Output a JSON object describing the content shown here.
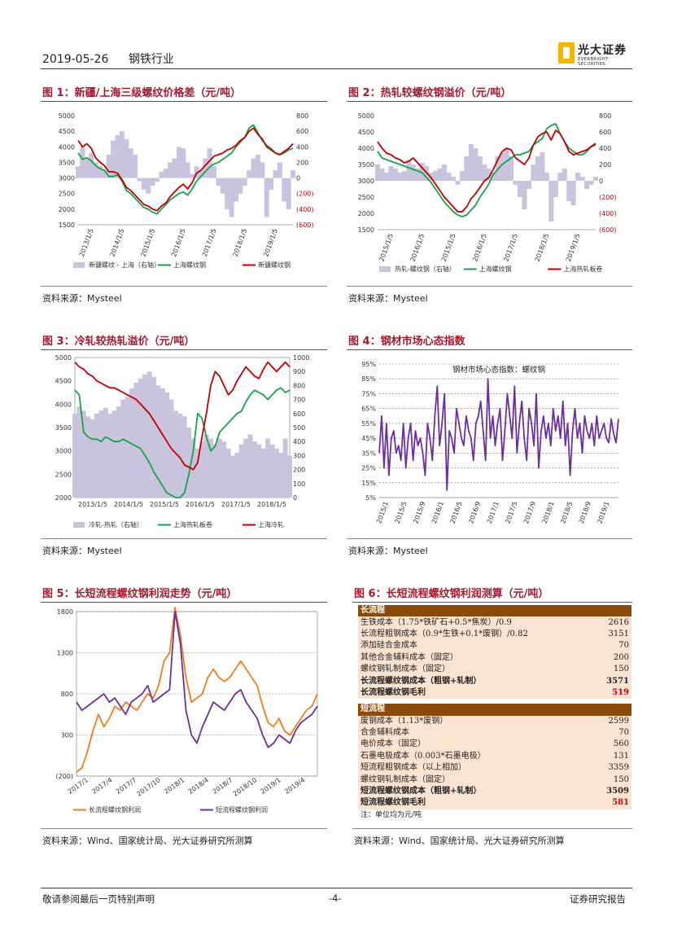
{
  "header": {
    "date": "2019-05-26",
    "industry": "钢铁行业",
    "logo_cn": "光大证券",
    "logo_en": "EVERBRIGHT SECURITIES"
  },
  "figures": {
    "fig1": {
      "title": "图 1：新疆/上海三级螺纹价格差（元/吨）",
      "source": "资料来源：Mysteel"
    },
    "fig2": {
      "title": "图 2：热轧较螺纹钢溢价（元/吨）",
      "source": "资料来源：Mysteel"
    },
    "fig3": {
      "title": "图 3：冷轧较热轧溢价（元/吨）",
      "source": "资料来源：Mysteel"
    },
    "fig4": {
      "title": "图 4：钢材市场心态指数",
      "source": "资料来源：Mysteel"
    },
    "fig5": {
      "title": "图 5：长短流程螺纹钢利润走势（元/吨）",
      "source": "资料来源：Wind、国家统计局、光大证券研究所测算"
    },
    "fig6": {
      "title": "图 6：长短流程螺纹钢利润测算（元/吨）",
      "source": "资料来源：Wind、国家统计局、光大证券研究所测算"
    }
  },
  "chart_data": [
    {
      "id": "fig1",
      "type": "line",
      "y_left": {
        "ticks": [
          "5000",
          "4500",
          "4000",
          "3500",
          "3000",
          "2500",
          "2000",
          "1500"
        ],
        "range": [
          1500,
          5000
        ]
      },
      "y_right": {
        "ticks": [
          "800",
          "600",
          "400",
          "200",
          "0",
          "(200)",
          "(400)",
          "(600)"
        ],
        "range": [
          -600,
          800
        ],
        "negative_color": "#c00000"
      },
      "x_ticks": [
        "2013/1/5",
        "2014/1/5",
        "2015/1/5",
        "2016/1/5",
        "2017/1/5",
        "2018/1/5",
        "2019/1/5"
      ],
      "legend": [
        "新疆螺纹 - 上海（右轴）",
        "上海螺纹钢",
        "新疆螺纹钢"
      ],
      "series": [
        {
          "name": "新疆螺纹 - 上海（右轴）",
          "axis": "right",
          "kind": "area",
          "color": "#c9c3de",
          "values": [
            150,
            400,
            250,
            320,
            200,
            150,
            100,
            300,
            480,
            550,
            600,
            500,
            380,
            300,
            -40,
            -150,
            -200,
            -100,
            -50,
            80,
            120,
            200,
            250,
            400,
            380,
            200,
            50,
            150,
            100,
            250,
            380,
            150,
            -100,
            -200,
            -400,
            -500,
            -300,
            -200,
            -100,
            100,
            250,
            300,
            200,
            -500,
            -150,
            100,
            200,
            -300,
            -400,
            100
          ]
        },
        {
          "name": "上海螺纹钢",
          "axis": "left",
          "color": "#16a34a",
          "values": [
            3800,
            3600,
            3650,
            3550,
            3400,
            3300,
            3250,
            3050,
            3050,
            3100,
            2900,
            2600,
            2500,
            2350,
            2200,
            2050,
            2000,
            1900,
            1850,
            2000,
            2150,
            2300,
            2400,
            2500,
            2550,
            2450,
            2650,
            2900,
            3050,
            3200,
            3350,
            3450,
            3500,
            3600,
            3700,
            3800,
            4000,
            4150,
            4300,
            4600,
            4700,
            4450,
            4200,
            4050,
            3950,
            3800,
            3750,
            3800,
            3900,
            3950
          ]
        },
        {
          "name": "新疆螺纹钢",
          "axis": "left",
          "color": "#c00000",
          "values": [
            4200,
            4000,
            4100,
            3950,
            3650,
            3500,
            3400,
            3200,
            3200,
            3150,
            2950,
            2700,
            2600,
            2450,
            2300,
            2150,
            2100,
            2000,
            1950,
            2100,
            2200,
            2400,
            2550,
            2700,
            2800,
            2650,
            2850,
            3150,
            3250,
            3400,
            3550,
            3700,
            3750,
            3800,
            3900,
            3950,
            4050,
            4200,
            4300,
            4500,
            4600,
            4400,
            4250,
            4000,
            3900,
            3800,
            3750,
            3850,
            3950,
            4100
          ]
        }
      ]
    },
    {
      "id": "fig2",
      "type": "line",
      "y_left": {
        "ticks": [
          "5000",
          "4500",
          "4000",
          "3500",
          "3000",
          "2500",
          "2000",
          "1500"
        ],
        "range": [
          1500,
          5000
        ]
      },
      "y_right": {
        "ticks": [
          "800",
          "600",
          "400",
          "200",
          "0",
          "(200)",
          "(400)",
          "(600)"
        ],
        "range": [
          -600,
          800
        ],
        "negative_color": "#c00000"
      },
      "x_ticks": [
        "2015/1/5",
        "2016/1/5",
        "2015/1/5",
        "2016/1/5",
        "2017/1/5",
        "2018/1/5",
        "2019/1/5"
      ],
      "legend": [
        "热轧-螺纹钢（右轴）",
        "上海螺纹钢",
        "上海热轧板卷"
      ],
      "series": [
        {
          "name": "热轧-螺纹钢（右轴）",
          "axis": "right",
          "kind": "area",
          "color": "#c9c3de",
          "values": [
            200,
            150,
            100,
            180,
            150,
            100,
            120,
            250,
            200,
            150,
            220,
            180,
            100,
            120,
            150,
            200,
            100,
            50,
            -50,
            120,
            300,
            450,
            400,
            300,
            200,
            150,
            100,
            300,
            350,
            400,
            300,
            -50,
            -200,
            -350,
            -100,
            200,
            300,
            350,
            100,
            -500,
            -200,
            100,
            150,
            -250,
            -300,
            100,
            50,
            -100,
            -50,
            50
          ]
        },
        {
          "name": "上海螺纹钢",
          "axis": "left",
          "color": "#16a34a",
          "values": [
            3900,
            3700,
            3650,
            3600,
            3550,
            3500,
            3450,
            3400,
            3350,
            3300,
            3250,
            3100,
            2950,
            2750,
            2550,
            2350,
            2200,
            2050,
            1950,
            1900,
            1950,
            2100,
            2250,
            2500,
            2700,
            2900,
            3200,
            3350,
            3500,
            3600,
            3700,
            3800,
            3800,
            3850,
            3900,
            4100,
            4200,
            4300,
            4600,
            4700,
            4750,
            4450,
            4200,
            4000,
            3900,
            3800,
            3800,
            3900,
            4050,
            4100
          ]
        },
        {
          "name": "上海热轧板卷",
          "axis": "left",
          "color": "#c00000",
          "values": [
            4200,
            4000,
            3850,
            3800,
            3700,
            3650,
            3550,
            3600,
            3700,
            3550,
            3400,
            3250,
            3100,
            2900,
            2700,
            2500,
            2350,
            2200,
            2050,
            2050,
            2200,
            2450,
            2600,
            2800,
            3000,
            3100,
            3350,
            3650,
            3900,
            4000,
            3950,
            3700,
            3600,
            3500,
            3700,
            4100,
            4350,
            4450,
            4500,
            4250,
            4550,
            4450,
            4200,
            3900,
            3800,
            3850,
            3900,
            3950,
            4050,
            4150
          ]
        }
      ]
    },
    {
      "id": "fig3",
      "type": "line",
      "y_left": {
        "ticks": [
          "5000",
          "4500",
          "4000",
          "3500",
          "3000",
          "2500",
          "2000"
        ],
        "range": [
          2000,
          5000
        ]
      },
      "y_right": {
        "ticks": [
          "1000",
          "900",
          "800",
          "700",
          "600",
          "500",
          "400",
          "300",
          "200",
          "100",
          "0"
        ],
        "range": [
          0,
          1000
        ]
      },
      "x_ticks": [
        "2013/1/5",
        "2014/1/5",
        "2015/1/5",
        "2016/1/5",
        "2017/1/5",
        "2018/1/5"
      ],
      "legend": [
        "冷轧-热轧（右轴）",
        "上海热轧板卷",
        "上海冷轧"
      ],
      "series": [
        {
          "name": "冷轧-热轧（右轴）",
          "axis": "right",
          "kind": "area",
          "color": "#c9c3de",
          "values": [
            600,
            650,
            620,
            580,
            560,
            600,
            620,
            640,
            600,
            620,
            650,
            700,
            720,
            780,
            820,
            850,
            880,
            900,
            860,
            800,
            780,
            750,
            700,
            620,
            600,
            580,
            500,
            420,
            350,
            400,
            450,
            420,
            380,
            420,
            400,
            350,
            300,
            320,
            380,
            420,
            450,
            400,
            380,
            350,
            420,
            380,
            350,
            320,
            420,
            300
          ]
        },
        {
          "name": "上海热轧板卷",
          "axis": "left",
          "color": "#16a34a",
          "values": [
            4300,
            4200,
            3400,
            3300,
            3250,
            3250,
            3200,
            3300,
            3250,
            3200,
            3200,
            3250,
            3200,
            3150,
            3100,
            3050,
            2900,
            2750,
            2550,
            2400,
            2250,
            2100,
            2050,
            2000,
            2000,
            2100,
            2500,
            3000,
            3800,
            3700,
            3300,
            3000,
            3100,
            3400,
            3500,
            3600,
            3700,
            3800,
            3850,
            4050,
            4200,
            4300,
            4250,
            4200,
            4100,
            4200,
            4300,
            4350,
            4250,
            4300
          ]
        },
        {
          "name": "上海冷轧",
          "axis": "left",
          "color": "#c00000",
          "values": [
            4900,
            4800,
            4750,
            4650,
            4600,
            4500,
            4450,
            4400,
            4350,
            4350,
            4300,
            4250,
            4200,
            4150,
            4100,
            4000,
            3900,
            3800,
            3650,
            3500,
            3350,
            3200,
            3050,
            2950,
            2850,
            2700,
            2650,
            2600,
            2750,
            3300,
            3800,
            4400,
            4700,
            4600,
            4400,
            4200,
            4300,
            4500,
            4650,
            4800,
            4700,
            4600,
            4550,
            4750,
            4900,
            4800,
            4700,
            4800,
            4900,
            4800
          ]
        }
      ]
    },
    {
      "id": "fig4",
      "type": "line",
      "inner_title": "钢材市场心态指数：螺纹钢",
      "y_left": {
        "ticks": [
          "95%",
          "85%",
          "75%",
          "65%",
          "55%",
          "45%",
          "35%",
          "25%",
          "15%",
          "5%"
        ],
        "range": [
          5,
          95
        ]
      },
      "x_ticks": [
        "2015/1",
        "2015/5",
        "2015/9",
        "2016/1",
        "2016/5",
        "2016/9",
        "2017/1",
        "2017/5",
        "2017/9",
        "2018/1",
        "2018/5",
        "2018/9",
        "2019/1"
      ],
      "series": [
        {
          "name": "钢材市场心态指数：螺纹钢",
          "color": "#6b2fa0",
          "values": [
            35,
            60,
            25,
            55,
            20,
            45,
            50,
            35,
            40,
            30,
            55,
            25,
            45,
            55,
            30,
            50,
            40,
            45,
            35,
            20,
            55,
            45,
            30,
            60,
            80,
            40,
            55,
            75,
            10,
            50,
            45,
            35,
            65,
            55,
            45,
            40,
            60,
            50,
            45,
            30,
            55,
            60,
            70,
            50,
            30,
            85,
            45,
            60,
            40,
            55,
            65,
            30,
            50,
            75,
            60,
            45,
            80,
            35,
            55,
            70,
            45,
            30,
            65,
            55,
            40,
            75,
            25,
            50,
            60,
            45,
            55,
            40,
            65,
            50,
            60,
            45,
            70,
            40,
            55,
            20,
            50,
            65,
            45,
            55,
            35,
            60,
            50,
            45,
            55,
            40,
            60,
            45,
            50,
            55,
            45,
            42,
            58,
            48,
            42,
            58
          ]
        }
      ]
    },
    {
      "id": "fig5",
      "type": "line",
      "y_left": {
        "ticks": [
          "1800",
          "1300",
          "800",
          "300",
          "(200)"
        ],
        "range": [
          -200,
          1800
        ]
      },
      "x_ticks": [
        "2017/1",
        "2017/4",
        "2017/7",
        "2017/10",
        "2018/1",
        "2018/4",
        "2018/7",
        "2018/10",
        "2019/1",
        "2019/4"
      ],
      "legend": [
        "长流程螺纹钢利润",
        "短流程螺纹钢利润"
      ],
      "series": [
        {
          "name": "长流程螺纹钢利润",
          "color": "#f07c1a",
          "values": [
            -150,
            -100,
            100,
            350,
            550,
            400,
            500,
            650,
            600,
            700,
            650,
            600,
            700,
            800,
            750,
            900,
            1200,
            1300,
            1850,
            1500,
            1000,
            700,
            750,
            800,
            1000,
            1100,
            1000,
            950,
            1000,
            1100,
            1200,
            1100,
            1000,
            900,
            650,
            450,
            400,
            500,
            350,
            300,
            400,
            500,
            600,
            650,
            800
          ]
        },
        {
          "name": "短流程螺纹钢利润",
          "color": "#6b2fa0",
          "values": [
            700,
            600,
            650,
            700,
            750,
            800,
            700,
            750,
            650,
            550,
            700,
            750,
            800,
            900,
            700,
            750,
            800,
            850,
            1800,
            1400,
            600,
            300,
            200,
            400,
            550,
            700,
            650,
            600,
            700,
            800,
            850,
            700,
            600,
            500,
            300,
            150,
            200,
            300,
            250,
            200,
            350,
            450,
            500,
            550,
            650
          ]
        }
      ]
    }
  ],
  "fig6_table": {
    "long_header": "长流程",
    "long_rows": [
      {
        "label": "生铁成本（1.75*铁矿石+0.5*焦炭）/0.9",
        "value": "2616"
      },
      {
        "label": "长流程粗钢成本（0.9*生铁+0.1*废钢）/0.82",
        "value": "3151"
      },
      {
        "label": "添加硅合金成本",
        "value": "70"
      },
      {
        "label": "其他合金辅料成本（固定）",
        "value": "200"
      },
      {
        "label": "螺纹钢轧制成本（固定）",
        "value": "150"
      }
    ],
    "long_cost": {
      "label": "长流程螺纹钢成本（粗钢+轧制）",
      "value": "3571"
    },
    "long_profit": {
      "label": "长流程螺纹钢毛利",
      "value": "519"
    },
    "short_header": "短流程",
    "short_rows": [
      {
        "label": "废钢成本（1.13*废钢）",
        "value": "2599"
      },
      {
        "label": "合金辅料成本",
        "value": "70"
      },
      {
        "label": "电价成本（固定）",
        "value": "560"
      },
      {
        "label": "石墨电极成本（0.003*石墨电极）",
        "value": "131"
      },
      {
        "label": "短流程粗钢成本（以上相加）",
        "value": "3359"
      },
      {
        "label": "螺纹钢轧制成本（固定）",
        "value": "150"
      }
    ],
    "short_cost": {
      "label": "短流程螺纹钢成本（粗钢+轧制）",
      "value": "3509"
    },
    "short_profit": {
      "label": "短流程螺纹钢毛利",
      "value": "581"
    },
    "note": "注：单位均为元/吨"
  },
  "footer": {
    "left": "敬请参阅最后一页特别声明",
    "center": "-4-",
    "right": "证券研究报告"
  }
}
